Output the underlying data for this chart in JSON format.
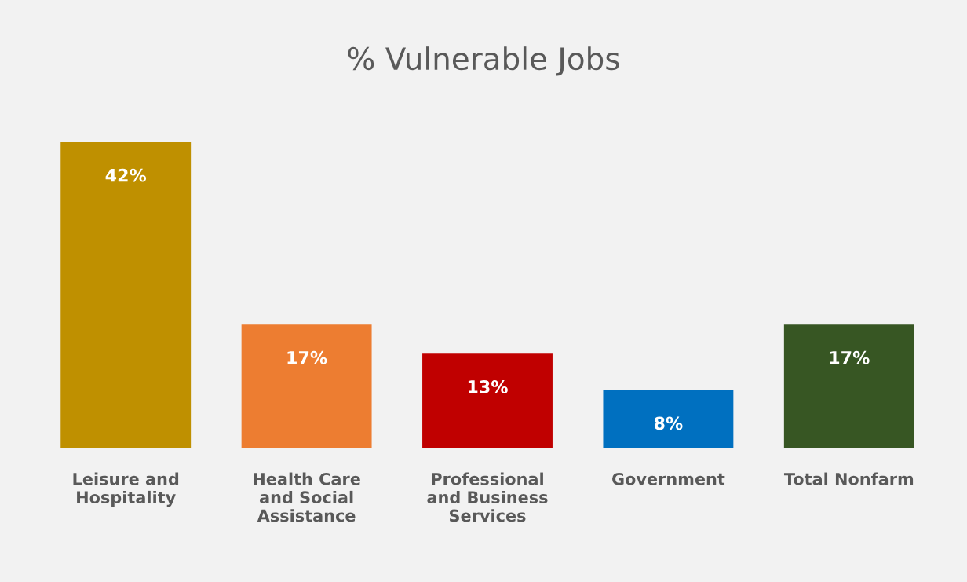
{
  "chart_data": {
    "type": "bar",
    "title": "% Vulnerable Jobs",
    "categories": [
      "Leisure and\nHospitality",
      "Health Care\nand Social\nAssistance",
      "Professional\nand Business\nServices",
      "Government",
      "Total Nonfarm"
    ],
    "values": [
      42,
      17,
      13,
      8,
      17
    ],
    "colors": [
      "#bf9000",
      "#ed7d31",
      "#c00000",
      "#0070c0",
      "#375623"
    ],
    "value_labels": [
      "42%",
      "17%",
      "13%",
      "8%",
      "17%"
    ],
    "grid": false,
    "legend": false
  }
}
